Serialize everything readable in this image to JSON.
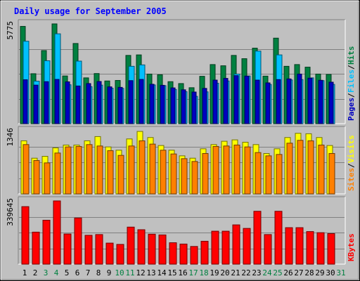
{
  "title": "Daily usage for September 2005",
  "colors": {
    "background": "#c0c0c0",
    "plot": "#c0c0c0",
    "hits": "#008040",
    "files": "#00c0ff",
    "pages": "#0000c0",
    "visits": "#ffff00",
    "sites": "#ff8000",
    "kbytes": "#ff0000",
    "weekday_tick": "#000000",
    "weekend_tick": "#008040"
  },
  "chart_data": [
    {
      "type": "bar",
      "name": "hits-files-pages",
      "y_max_label": "5775",
      "ylim": [
        0,
        5775
      ],
      "side_labels": [
        "Pages",
        "Files",
        "Hits"
      ],
      "categories": [
        "1",
        "2",
        "3",
        "4",
        "5",
        "6",
        "7",
        "8",
        "9",
        "10",
        "11",
        "12",
        "13",
        "14",
        "15",
        "16",
        "17",
        "18",
        "19",
        "20",
        "21",
        "22",
        "23",
        "24",
        "25",
        "26",
        "27",
        "28",
        "29",
        "30",
        "31"
      ],
      "series": [
        {
          "name": "Hits",
          "values": [
            5630,
            2890,
            4230,
            5775,
            2760,
            4640,
            2650,
            2900,
            2470,
            2500,
            3950,
            3980,
            2870,
            2830,
            2430,
            2320,
            2080,
            2740,
            3420,
            3350,
            3950,
            3760,
            4370,
            2750,
            4950,
            3320,
            3420,
            3270,
            2870,
            2850,
            0
          ]
        },
        {
          "name": "Files",
          "values": [
            4770,
            2460,
            3640,
            5200,
            2250,
            3620,
            2140,
            2230,
            2050,
            2040,
            3320,
            3400,
            2240,
            2200,
            1980,
            1850,
            1580,
            1840,
            2340,
            2470,
            2870,
            2760,
            4200,
            2270,
            3980,
            2530,
            2550,
            2650,
            2490,
            2270,
            0
          ]
        },
        {
          "name": "Pages",
          "values": [
            2540,
            2230,
            2430,
            2560,
            2420,
            2180,
            2320,
            2440,
            2130,
            2100,
            2490,
            2560,
            2280,
            2220,
            2070,
            1960,
            1830,
            2040,
            2520,
            2620,
            2780,
            2750,
            2520,
            2360,
            2550,
            2590,
            2870,
            2630,
            2510,
            2400,
            0
          ]
        }
      ]
    },
    {
      "type": "bar",
      "name": "visits-sites",
      "y_max_label": "1346",
      "ylim": [
        0,
        1346
      ],
      "side_labels": [
        "Sites",
        "Visits"
      ],
      "categories": [
        "1",
        "2",
        "3",
        "4",
        "5",
        "6",
        "7",
        "8",
        "9",
        "10",
        "11",
        "12",
        "13",
        "14",
        "15",
        "16",
        "17",
        "18",
        "19",
        "20",
        "21",
        "22",
        "23",
        "24",
        "25",
        "26",
        "27",
        "28",
        "29",
        "30",
        "31"
      ],
      "series": [
        {
          "name": "Visits",
          "values": [
            1130,
            760,
            800,
            980,
            1040,
            1040,
            1130,
            1220,
            1000,
            930,
            1170,
            1330,
            1200,
            1030,
            930,
            810,
            760,
            960,
            1050,
            1120,
            1150,
            1100,
            1050,
            860,
            960,
            1200,
            1290,
            1280,
            1200,
            1030,
            0
          ]
        },
        {
          "name": "Sites",
          "values": [
            1050,
            710,
            660,
            870,
            1000,
            1010,
            1050,
            1020,
            920,
            820,
            1020,
            1130,
            1060,
            930,
            850,
            750,
            690,
            860,
            1010,
            1020,
            1040,
            1000,
            880,
            810,
            840,
            1080,
            1140,
            1130,
            1040,
            860,
            0
          ]
        }
      ]
    },
    {
      "type": "bar",
      "name": "kbytes",
      "y_max_label": "339645",
      "ylim": [
        0,
        339645
      ],
      "side_labels": [
        "KBytes"
      ],
      "categories": [
        "1",
        "2",
        "3",
        "4",
        "5",
        "6",
        "7",
        "8",
        "9",
        "10",
        "11",
        "12",
        "13",
        "14",
        "15",
        "16",
        "17",
        "18",
        "19",
        "20",
        "21",
        "22",
        "23",
        "24",
        "25",
        "26",
        "27",
        "28",
        "29",
        "30",
        "31"
      ],
      "series": [
        {
          "name": "KBytes",
          "values": [
            309000,
            172000,
            236000,
            339645,
            162000,
            248000,
            155000,
            159000,
            113000,
            106000,
            199000,
            185000,
            161000,
            157000,
            115000,
            108000,
            95000,
            123000,
            177000,
            177000,
            211000,
            192000,
            284000,
            159000,
            284000,
            196000,
            196000,
            175000,
            169000,
            164000,
            0
          ]
        }
      ]
    }
  ],
  "x_ticks": [
    "1",
    "2",
    "3",
    "4",
    "5",
    "6",
    "7",
    "8",
    "9",
    "10",
    "11",
    "12",
    "13",
    "14",
    "15",
    "16",
    "17",
    "18",
    "19",
    "20",
    "21",
    "22",
    "23",
    "24",
    "25",
    "26",
    "27",
    "28",
    "29",
    "30",
    "31"
  ],
  "weekend_days": [
    "3",
    "4",
    "10",
    "11",
    "17",
    "18",
    "24",
    "25",
    "31"
  ]
}
